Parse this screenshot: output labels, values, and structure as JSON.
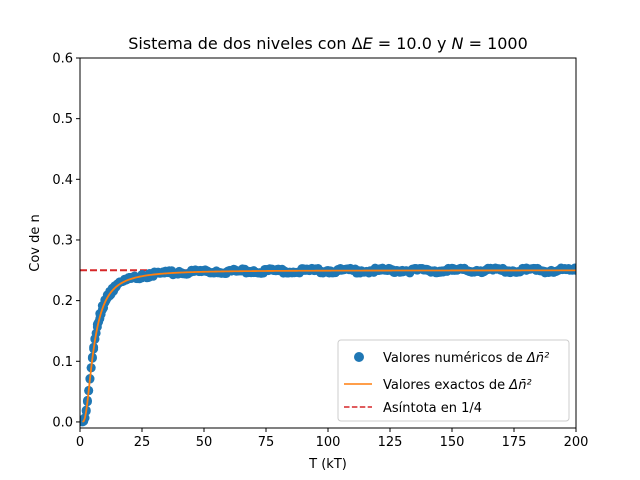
{
  "chart_data": {
    "type": "scatter",
    "title": "Sistema de dos niveles con ΔE = 10.0 y N = 1000",
    "title_parts": {
      "prefix": "Sistema de dos niveles con ",
      "delta_symbol": "Δ",
      "energy_var": "E",
      "energy_eq": " =  10.0 y ",
      "count_var": "N",
      "count_eq": " =  1000"
    },
    "xlabel": "T (kT)",
    "ylabel": "Cov de n",
    "xlim": [
      0,
      200
    ],
    "ylim": [
      -0.01,
      0.6
    ],
    "xticks": [
      "0",
      "25",
      "50",
      "75",
      "100",
      "125",
      "150",
      "175",
      "200"
    ],
    "yticks": [
      "0.0",
      "0.1",
      "0.2",
      "0.3",
      "0.4",
      "0.5",
      "0.6"
    ],
    "grid": false,
    "legend_position": "lower-right",
    "delta_e": 10.0,
    "series": [
      {
        "legend_text": "Valores numéricos de ",
        "legend_symbol": "Δn̄²",
        "kind": "scatter",
        "color": "#1f77b4",
        "x": [
          1.0,
          1.5,
          2.0,
          2.5,
          3.0,
          3.5,
          4.0,
          4.5,
          5.0,
          5.5,
          6.0,
          7.0,
          8.0,
          9.0,
          10.0,
          11.0,
          12.0,
          13.0,
          14.0,
          15.0,
          16.0,
          18.0,
          20.0,
          22.0,
          25.0,
          28.0,
          31.0,
          35.0,
          40.0,
          45.0,
          50.0,
          55.0,
          60.0,
          70.0,
          80.0,
          90.0,
          100.0,
          110.0,
          120.0,
          130.0,
          140.0,
          150.0,
          160.0,
          170.0,
          180.0,
          190.0,
          200.0
        ],
        "y": [
          0.0,
          0.0013,
          0.0066,
          0.0178,
          0.0333,
          0.0514,
          0.0707,
          0.0893,
          0.105,
          0.1232,
          0.1372,
          0.1609,
          0.1786,
          0.1917,
          0.2012,
          0.2094,
          0.2153,
          0.2203,
          0.2243,
          0.2274,
          0.2306,
          0.2353,
          0.2381,
          0.2405,
          0.2431,
          0.2447,
          0.2459,
          0.2474,
          0.2482,
          0.2484,
          0.2489,
          0.249,
          0.2493,
          0.2495,
          0.2495,
          0.2497,
          0.2497,
          0.2498,
          0.2498,
          0.2498,
          0.2499,
          0.2499,
          0.2499,
          0.2499,
          0.2499,
          0.2499,
          0.2499
        ]
      },
      {
        "legend_text": "Valores exactos de ",
        "legend_symbol": "Δn̄²",
        "kind": "line",
        "color": "#ff7f0e"
      },
      {
        "legend_text": "Asíntota en 1/4",
        "kind": "dashed-line",
        "color": "#d62728",
        "y": 0.25
      }
    ]
  }
}
